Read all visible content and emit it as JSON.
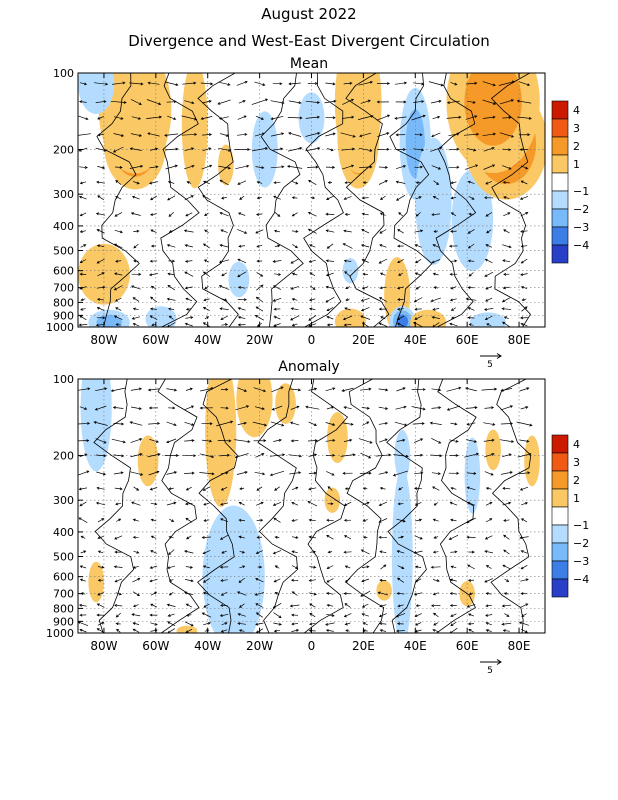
{
  "figure": {
    "title": "August 2022",
    "subtitle": "Divergence and West-East Divergent Circulation"
  },
  "colors": {
    "pos4": "#cc1a00",
    "pos3": "#f05a14",
    "pos2": "#f59a28",
    "pos1": "#fac864",
    "neg1": "#b4dcff",
    "neg2": "#78b9fa",
    "neg3": "#3c7de6",
    "neg4": "#2840c8",
    "neg5": "#8c64dc",
    "white": "#ffffff"
  },
  "chart_data": [
    {
      "type": "heatmap",
      "title": "Mean",
      "x_ticks": [
        "80W",
        "60W",
        "40W",
        "20W",
        "0",
        "20E",
        "40E",
        "60E",
        "80E"
      ],
      "x_tick_values": [
        -80,
        -60,
        -40,
        -20,
        0,
        20,
        40,
        60,
        80
      ],
      "xlim": [
        -90,
        90
      ],
      "y_ticks": [
        "100",
        "200",
        "300",
        "400",
        "500",
        "600",
        "700",
        "800",
        "900",
        "1000"
      ],
      "y_tick_values": [
        100,
        200,
        300,
        400,
        500,
        600,
        700,
        800,
        900,
        1000
      ],
      "ylim": [
        1000,
        100
      ],
      "y_scale": "log",
      "colorbar": {
        "labels": [
          "4",
          "3",
          "2",
          "1",
          "−1",
          "−2",
          "−3",
          "−4"
        ],
        "bins": [
          "pos4",
          "pos3",
          "pos2",
          "pos1",
          "white",
          "neg1",
          "neg2",
          "neg3",
          "neg4"
        ]
      },
      "vector_reference": "5",
      "shading": [
        {
          "lon": -68,
          "lev": 190,
          "value": 3.2,
          "rx": 12,
          "ry": 0.18
        },
        {
          "lon": -68,
          "lev": 140,
          "value": 1.6,
          "rx": 14,
          "ry": 0.25
        },
        {
          "lon": -83,
          "lev": 110,
          "value": -1.6,
          "rx": 7,
          "ry": 0.12
        },
        {
          "lon": -45,
          "lev": 160,
          "value": 1.5,
          "rx": 5,
          "ry": 0.25
        },
        {
          "lon": -33,
          "lev": 230,
          "value": 1.3,
          "rx": 3,
          "ry": 0.08
        },
        {
          "lon": -18,
          "lev": 200,
          "value": -1.2,
          "rx": 5,
          "ry": 0.15
        },
        {
          "lon": 18,
          "lev": 180,
          "value": 3.0,
          "rx": 8,
          "ry": 0.2
        },
        {
          "lon": 18,
          "lev": 130,
          "value": 1.8,
          "rx": 9,
          "ry": 0.28
        },
        {
          "lon": 0,
          "lev": 150,
          "value": -1.2,
          "rx": 5,
          "ry": 0.1
        },
        {
          "lon": 40,
          "lev": 190,
          "value": -2.8,
          "rx": 6,
          "ry": 0.22
        },
        {
          "lon": 47,
          "lev": 320,
          "value": -1.3,
          "rx": 7,
          "ry": 0.25
        },
        {
          "lon": 62,
          "lev": 380,
          "value": -1.2,
          "rx": 8,
          "ry": 0.2
        },
        {
          "lon": 75,
          "lev": 190,
          "value": 3.4,
          "rx": 16,
          "ry": 0.22
        },
        {
          "lon": 70,
          "lev": 130,
          "value": 2.2,
          "rx": 18,
          "ry": 0.28
        },
        {
          "lon": -80,
          "lev": 620,
          "value": 1.5,
          "rx": 10,
          "ry": 0.12
        },
        {
          "lon": -28,
          "lev": 650,
          "value": -1.3,
          "rx": 4,
          "ry": 0.07
        },
        {
          "lon": 15,
          "lev": 600,
          "value": -1.1,
          "rx": 3,
          "ry": 0.05
        },
        {
          "lon": 33,
          "lev": 750,
          "value": 1.5,
          "rx": 5,
          "ry": 0.15
        },
        {
          "lon": 35,
          "lev": 950,
          "value": -3.0,
          "rx": 5,
          "ry": 0.06
        },
        {
          "lon": 15,
          "lev": 950,
          "value": 1.4,
          "rx": 6,
          "ry": 0.05
        },
        {
          "lon": 45,
          "lev": 960,
          "value": 1.6,
          "rx": 7,
          "ry": 0.05
        },
        {
          "lon": -78,
          "lev": 960,
          "value": -2.0,
          "rx": 8,
          "ry": 0.05
        },
        {
          "lon": -58,
          "lev": 930,
          "value": -1.2,
          "rx": 6,
          "ry": 0.05
        },
        {
          "lon": 68,
          "lev": 960,
          "value": -1.2,
          "rx": 7,
          "ry": 0.04
        }
      ]
    },
    {
      "type": "heatmap",
      "title": "Anomaly",
      "x_ticks": [
        "80W",
        "60W",
        "40W",
        "20W",
        "0",
        "20E",
        "40E",
        "60E",
        "80E"
      ],
      "x_tick_values": [
        -80,
        -60,
        -40,
        -20,
        0,
        20,
        40,
        60,
        80
      ],
      "xlim": [
        -90,
        90
      ],
      "y_ticks": [
        "100",
        "200",
        "300",
        "400",
        "500",
        "600",
        "700",
        "800",
        "900",
        "1000"
      ],
      "y_tick_values": [
        100,
        200,
        300,
        400,
        500,
        600,
        700,
        800,
        900,
        1000
      ],
      "ylim": [
        1000,
        100
      ],
      "y_scale": "log",
      "colorbar": {
        "labels": [
          "4",
          "3",
          "2",
          "1",
          "−1",
          "−2",
          "−3",
          "−4"
        ],
        "bins": [
          "pos4",
          "pos3",
          "pos2",
          "pos1",
          "white",
          "neg1",
          "neg2",
          "neg3",
          "neg4"
        ]
      },
      "vector_reference": "5",
      "shading": [
        {
          "lon": -83,
          "lev": 130,
          "value": -1.3,
          "rx": 6,
          "ry": 0.25
        },
        {
          "lon": -63,
          "lev": 210,
          "value": 1.4,
          "rx": 4,
          "ry": 0.1
        },
        {
          "lon": -35,
          "lev": 160,
          "value": 1.6,
          "rx": 6,
          "ry": 0.3
        },
        {
          "lon": -22,
          "lev": 120,
          "value": 1.5,
          "rx": 7,
          "ry": 0.15
        },
        {
          "lon": -10,
          "lev": 125,
          "value": 1.3,
          "rx": 4,
          "ry": 0.08
        },
        {
          "lon": 10,
          "lev": 170,
          "value": 1.3,
          "rx": 4,
          "ry": 0.1
        },
        {
          "lon": 8,
          "lev": 300,
          "value": 1.3,
          "rx": 3,
          "ry": 0.05
        },
        {
          "lon": 35,
          "lev": 200,
          "value": -1.2,
          "rx": 3,
          "ry": 0.1
        },
        {
          "lon": 62,
          "lev": 240,
          "value": -1.2,
          "rx": 3,
          "ry": 0.15
        },
        {
          "lon": 70,
          "lev": 190,
          "value": 1.3,
          "rx": 3,
          "ry": 0.08
        },
        {
          "lon": 85,
          "lev": 210,
          "value": 1.2,
          "rx": 3,
          "ry": 0.1
        },
        {
          "lon": -30,
          "lev": 600,
          "value": -1.4,
          "rx": 12,
          "ry": 0.28
        },
        {
          "lon": 35,
          "lev": 500,
          "value": -1.2,
          "rx": 4,
          "ry": 0.35
        },
        {
          "lon": 28,
          "lev": 680,
          "value": 1.2,
          "rx": 3,
          "ry": 0.04
        },
        {
          "lon": 60,
          "lev": 700,
          "value": 1.3,
          "rx": 3,
          "ry": 0.05
        },
        {
          "lon": -83,
          "lev": 630,
          "value": 1.2,
          "rx": 3,
          "ry": 0.08
        },
        {
          "lon": -48,
          "lev": 980,
          "value": 1.4,
          "rx": 4,
          "ry": 0.02
        }
      ]
    }
  ]
}
